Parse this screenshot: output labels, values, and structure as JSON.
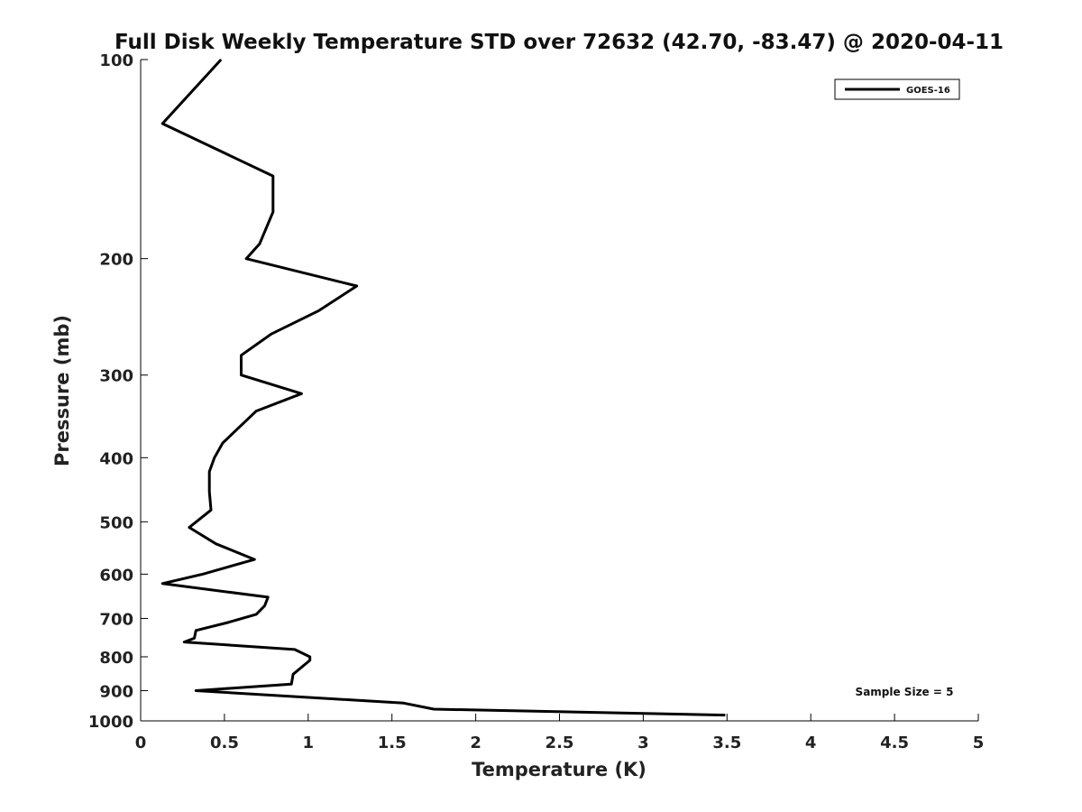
{
  "chart_data": {
    "type": "line",
    "title": "Full Disk Weekly Temperature STD over 72632 (42.70, -83.47) @ 2020-04-11",
    "xlabel": "Temperature (K)",
    "ylabel": "Pressure (mb)",
    "xlim": [
      0,
      5
    ],
    "ylim": [
      100,
      1000
    ],
    "y_scale": "log",
    "y_reversed": true,
    "x_ticks": [
      "0",
      "0.5",
      "1",
      "1.5",
      "2",
      "2.5",
      "3",
      "3.5",
      "4",
      "4.5",
      "5"
    ],
    "y_ticks": [
      "100",
      "200",
      "300",
      "400",
      "500",
      "600",
      "700",
      "800",
      "900",
      "1000"
    ],
    "grid": false,
    "legend_position": "top-right",
    "series": [
      {
        "name": "GOES-16",
        "color": "#000000",
        "points": [
          {
            "x": 0.48,
            "y": 100
          },
          {
            "x": 0.13,
            "y": 125
          },
          {
            "x": 0.79,
            "y": 150
          },
          {
            "x": 0.79,
            "y": 170
          },
          {
            "x": 0.71,
            "y": 190
          },
          {
            "x": 0.63,
            "y": 200
          },
          {
            "x": 1.29,
            "y": 220
          },
          {
            "x": 1.06,
            "y": 240
          },
          {
            "x": 0.78,
            "y": 260
          },
          {
            "x": 0.6,
            "y": 280
          },
          {
            "x": 0.6,
            "y": 300
          },
          {
            "x": 0.96,
            "y": 320
          },
          {
            "x": 0.69,
            "y": 340
          },
          {
            "x": 0.49,
            "y": 380
          },
          {
            "x": 0.44,
            "y": 400
          },
          {
            "x": 0.41,
            "y": 420
          },
          {
            "x": 0.41,
            "y": 450
          },
          {
            "x": 0.42,
            "y": 480
          },
          {
            "x": 0.29,
            "y": 510
          },
          {
            "x": 0.45,
            "y": 540
          },
          {
            "x": 0.68,
            "y": 570
          },
          {
            "x": 0.37,
            "y": 600
          },
          {
            "x": 0.13,
            "y": 620
          },
          {
            "x": 0.76,
            "y": 650
          },
          {
            "x": 0.74,
            "y": 670
          },
          {
            "x": 0.69,
            "y": 690
          },
          {
            "x": 0.52,
            "y": 710
          },
          {
            "x": 0.33,
            "y": 730
          },
          {
            "x": 0.32,
            "y": 750
          },
          {
            "x": 0.26,
            "y": 760
          },
          {
            "x": 0.92,
            "y": 780
          },
          {
            "x": 1.01,
            "y": 800
          },
          {
            "x": 1.01,
            "y": 810
          },
          {
            "x": 0.91,
            "y": 850
          },
          {
            "x": 0.9,
            "y": 880
          },
          {
            "x": 0.33,
            "y": 900
          },
          {
            "x": 1.57,
            "y": 940
          },
          {
            "x": 1.75,
            "y": 960
          },
          {
            "x": 3.49,
            "y": 980
          }
        ]
      }
    ],
    "annotations": [
      "Sample Size = 5"
    ]
  }
}
